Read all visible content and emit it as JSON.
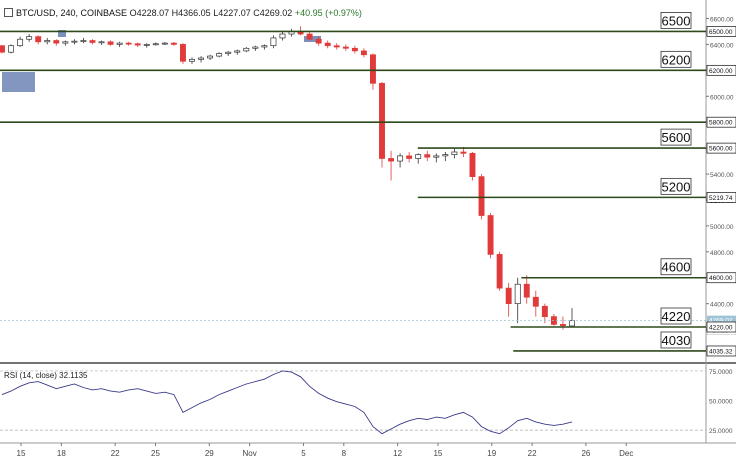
{
  "header": {
    "symbol": "BTC/USD, 240, COINBASE",
    "o_label": "O",
    "o_value": "4228.07",
    "h_label": "H",
    "h_value": "4366.05",
    "l_label": "L",
    "l_value": "4227.07",
    "c_label": "C",
    "c_value": "4269.02",
    "change": "+40.95 (+0.97%)"
  },
  "rsi_header": {
    "label": "RSI (14, close)",
    "value": "32.1135"
  },
  "colors": {
    "level_line": "#2f4a1a",
    "candle_up": "#333333",
    "candle_down": "#e03a3a",
    "rsi_line": "#3a3a8a",
    "price_marker": "#9fc3d6",
    "marker_box": "#6d84b4"
  },
  "chart_data": {
    "type": "candlestick",
    "price_axis": {
      "min": 3950,
      "max": 6650,
      "ticks": [
        "6600.00",
        "6400.00",
        "6200.00",
        "6000.00",
        "5800.00",
        "5600.00",
        "5400.00",
        "5200.00",
        "5000.00",
        "4800.00",
        "4600.00",
        "4400.00",
        "4200.00"
      ],
      "tick_values": [
        6600,
        6400,
        6200,
        6000,
        5800,
        5600,
        5400,
        5200,
        5000,
        4800,
        4600,
        4400,
        4200
      ]
    },
    "x_axis": {
      "labels": [
        "15",
        "18",
        "22",
        "25",
        "29",
        "Nov",
        "5",
        "8",
        "12",
        "15",
        "19",
        "22",
        "26",
        "Dec"
      ],
      "positions": [
        0,
        3,
        7,
        10,
        14,
        17,
        21,
        24,
        28,
        31,
        35,
        38,
        42,
        45
      ]
    },
    "levels": [
      {
        "price": 6500,
        "label": "6500",
        "axis_label": "6500.00",
        "from_day": -2
      },
      {
        "price": 6200,
        "label": "6200",
        "axis_label": "6200.00",
        "from_day": -2
      },
      {
        "price": 5800,
        "label": "",
        "axis_label": "5800.00",
        "from_day": -2
      },
      {
        "price": 5600,
        "label": "5600",
        "axis_label": "5600.00",
        "from_day": 29.5
      },
      {
        "price": 5220,
        "label": "5200",
        "axis_label": "5219.74",
        "from_day": 29.5
      },
      {
        "price": 4600,
        "label": "4600",
        "axis_label": "4600.00",
        "from_day": 37.2
      },
      {
        "price": 4220,
        "label": "4220",
        "axis_label": "4220.00",
        "from_day": 36.4
      },
      {
        "price": 4035,
        "label": "4030",
        "axis_label": "4035.32",
        "from_day": 36.6
      }
    ],
    "current_price": {
      "value": 4269.02,
      "axis_label": "4269.02",
      "countdown": "20:12"
    },
    "series": [
      {
        "values": [
          [
            6390,
            6395,
            6330,
            6340
          ],
          [
            6340,
            6400,
            6330,
            6390
          ],
          [
            6390,
            6460,
            6380,
            6440
          ],
          [
            6440,
            6480,
            6420,
            6460
          ],
          [
            6460,
            6470,
            6400,
            6420
          ],
          [
            6420,
            6450,
            6400,
            6430
          ],
          [
            6430,
            6440,
            6390,
            6410
          ],
          [
            6410,
            6430,
            6390,
            6420
          ],
          [
            6420,
            6440,
            6400,
            6425
          ],
          [
            6425,
            6450,
            6410,
            6430
          ],
          [
            6430,
            6440,
            6400,
            6415
          ],
          [
            6415,
            6430,
            6395,
            6420
          ],
          [
            6420,
            6430,
            6390,
            6400
          ],
          [
            6400,
            6420,
            6380,
            6410
          ],
          [
            6410,
            6420,
            6390,
            6405
          ],
          [
            6405,
            6415,
            6380,
            6395
          ],
          [
            6395,
            6410,
            6375,
            6400
          ],
          [
            6400,
            6415,
            6390,
            6405
          ],
          [
            6405,
            6420,
            6395,
            6410
          ],
          [
            6410,
            6420,
            6390,
            6400
          ],
          [
            6400,
            6410,
            6250,
            6270
          ],
          [
            6270,
            6300,
            6250,
            6285
          ],
          [
            6285,
            6310,
            6260,
            6295
          ],
          [
            6295,
            6320,
            6280,
            6310
          ],
          [
            6310,
            6340,
            6300,
            6330
          ],
          [
            6330,
            6350,
            6310,
            6340
          ],
          [
            6340,
            6360,
            6320,
            6350
          ],
          [
            6350,
            6380,
            6340,
            6370
          ],
          [
            6370,
            6390,
            6350,
            6380
          ],
          [
            6380,
            6400,
            6360,
            6390
          ],
          [
            6390,
            6470,
            6370,
            6450
          ],
          [
            6450,
            6500,
            6430,
            6480
          ],
          [
            6480,
            6520,
            6460,
            6500
          ],
          [
            6500,
            6540,
            6470,
            6480
          ],
          [
            6480,
            6500,
            6430,
            6440
          ],
          [
            6440,
            6460,
            6390,
            6410
          ],
          [
            6410,
            6430,
            6370,
            6390
          ],
          [
            6390,
            6410,
            6360,
            6380
          ],
          [
            6380,
            6400,
            6350,
            6370
          ],
          [
            6370,
            6390,
            6330,
            6350
          ],
          [
            6350,
            6370,
            6300,
            6320
          ],
          [
            6320,
            6330,
            6050,
            6100
          ],
          [
            6100,
            6110,
            5450,
            5520
          ],
          [
            5520,
            5580,
            5350,
            5500
          ],
          [
            5500,
            5560,
            5450,
            5540
          ],
          [
            5540,
            5570,
            5490,
            5520
          ],
          [
            5520,
            5560,
            5480,
            5550
          ],
          [
            5550,
            5580,
            5500,
            5530
          ],
          [
            5530,
            5560,
            5490,
            5540
          ],
          [
            5540,
            5570,
            5500,
            5550
          ],
          [
            5550,
            5600,
            5520,
            5570
          ],
          [
            5570,
            5610,
            5530,
            5560
          ],
          [
            5560,
            5570,
            5350,
            5380
          ],
          [
            5380,
            5400,
            5050,
            5080
          ],
          [
            5080,
            5100,
            4750,
            4780
          ],
          [
            4780,
            4800,
            4500,
            4520
          ],
          [
            4520,
            4560,
            4300,
            4400
          ],
          [
            4400,
            4600,
            4250,
            4550
          ],
          [
            4550,
            4620,
            4400,
            4450
          ],
          [
            4450,
            4500,
            4300,
            4380
          ],
          [
            4380,
            4400,
            4250,
            4300
          ],
          [
            4300,
            4320,
            4230,
            4240
          ],
          [
            4240,
            4300,
            4200,
            4230
          ],
          [
            4228,
            4366,
            4227,
            4269
          ]
        ]
      },
      {
        "name": "RSI (14, close)",
        "values": [
          55,
          58,
          62,
          65,
          66,
          63,
          60,
          62,
          64,
          61,
          59,
          60,
          58,
          57,
          59,
          60,
          58,
          56,
          57,
          55,
          40,
          44,
          48,
          51,
          55,
          58,
          61,
          64,
          66,
          68,
          72,
          75,
          74,
          70,
          62,
          56,
          52,
          49,
          47,
          45,
          40,
          28,
          22,
          26,
          30,
          33,
          35,
          34,
          36,
          35,
          38,
          40,
          36,
          28,
          24,
          22,
          27,
          33,
          35,
          32,
          30,
          29,
          30,
          32
        ]
      }
    ],
    "rsi_axis": {
      "min": 15,
      "max": 80,
      "ticks": [
        "75.0000",
        "50.0000",
        "25.0000"
      ],
      "tick_values": [
        75,
        50,
        25
      ],
      "bands": [
        75,
        25
      ]
    }
  }
}
